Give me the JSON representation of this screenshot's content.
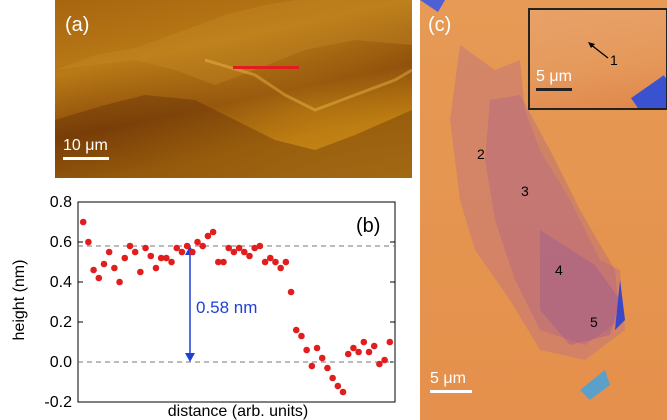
{
  "panel_a": {
    "label": "(a)",
    "scale_label": "10 μm",
    "profile_line_color": "#e11d1d"
  },
  "panel_c": {
    "label": "(c)",
    "scale_label": "5 μm",
    "inset_scale_label": "5 μm",
    "markers": [
      "1",
      "2",
      "3",
      "4",
      "5"
    ]
  },
  "chart_data": {
    "type": "scatter",
    "panel_label": "(b)",
    "xlabel": "distance (arb. units)",
    "ylabel": "height (nm)",
    "ylim": [
      -0.2,
      0.8
    ],
    "yticks": [
      "-0.2",
      "0.0",
      "0.2",
      "0.4",
      "0.6",
      "0.8"
    ],
    "annotation": "0.58 nm",
    "reference_lines": [
      0.0,
      0.58
    ],
    "marker_color": "#e11d1d",
    "annotation_color": "#1f3fd6",
    "series": [
      {
        "x": [
          1,
          2,
          3,
          4,
          5,
          6,
          7,
          8,
          9,
          10,
          11,
          12,
          13,
          14,
          15,
          16,
          17,
          18,
          19,
          20,
          21,
          22,
          23,
          24,
          25,
          26,
          27,
          28,
          29,
          30,
          31,
          32,
          33,
          34,
          35,
          36,
          37,
          38,
          39,
          40,
          41,
          42,
          43,
          44,
          45,
          46,
          47,
          48,
          49,
          50,
          51,
          52,
          53,
          54,
          55,
          56,
          57,
          58,
          59,
          60
        ],
        "values": [
          0.7,
          0.6,
          0.46,
          0.42,
          0.49,
          0.55,
          0.47,
          0.4,
          0.52,
          0.58,
          0.55,
          0.45,
          0.57,
          0.53,
          0.47,
          0.52,
          0.52,
          0.5,
          0.57,
          0.55,
          0.58,
          0.55,
          0.6,
          0.58,
          0.63,
          0.65,
          0.5,
          0.5,
          0.57,
          0.55,
          0.57,
          0.55,
          0.53,
          0.57,
          0.58,
          0.5,
          0.52,
          0.5,
          0.47,
          0.5,
          0.35,
          0.16,
          0.13,
          0.06,
          -0.02,
          0.07,
          0.02,
          -0.03,
          -0.08,
          -0.12,
          -0.15,
          0.04,
          0.07,
          0.05,
          0.1,
          0.05,
          0.08,
          -0.01,
          0.01,
          0.1
        ]
      }
    ]
  }
}
